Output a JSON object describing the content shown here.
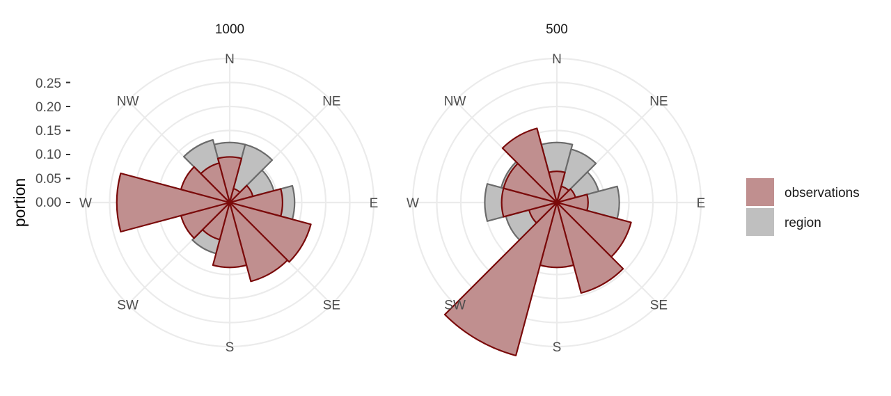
{
  "chart_data": {
    "type": "polar-bar",
    "ylabel": "portion",
    "ylim": [
      0,
      0.25
    ],
    "yticks": [
      "0.25",
      "0.20",
      "0.15",
      "0.10",
      "0.05",
      "0.00"
    ],
    "ytick_values": [
      0.25,
      0.2,
      0.15,
      0.1,
      0.05,
      0.0
    ],
    "directions": [
      "N",
      "NE",
      "E",
      "SE",
      "S",
      "SW",
      "W",
      "NW"
    ],
    "bin_width_deg": 30,
    "bin_centers_deg": [
      0,
      30,
      60,
      90,
      120,
      150,
      180,
      210,
      240,
      270,
      300,
      330
    ],
    "grid": true,
    "legend_position": "right",
    "legend": [
      "observations",
      "region"
    ],
    "colors": {
      "observations_fill": "#c08f8f",
      "observations_stroke": "#7a0a0a",
      "region_fill": "#bfbfbf",
      "region_stroke": "#6b6b6b",
      "grid": "#ebebeb"
    },
    "panels": [
      {
        "title": "1000",
        "series": [
          {
            "name": "region",
            "values": [
              0.125,
              0.125,
              0.095,
              0.135,
              0.1,
              0.105,
              0.1,
              0.11,
              0.1,
              0.15,
              0.095,
              0.135
            ]
          },
          {
            "name": "observations",
            "values": [
              0.095,
              0.03,
              0.05,
              0.11,
              0.175,
              0.17,
              0.135,
              0.08,
              0.105,
              0.235,
              0.105,
              0.085
            ]
          }
        ]
      },
      {
        "title": "500",
        "series": [
          {
            "name": "region",
            "values": [
              0.125,
              0.115,
              0.09,
              0.13,
              0.135,
              0.09,
              0.105,
              0.09,
              0.11,
              0.15,
              0.12,
              0.145
            ]
          },
          {
            "name": "observations",
            "values": [
              0.065,
              0.035,
              0.04,
              0.065,
              0.16,
              0.195,
              0.135,
              0.33,
              0.06,
              0.115,
              0.115,
              0.16
            ]
          }
        ]
      }
    ]
  }
}
